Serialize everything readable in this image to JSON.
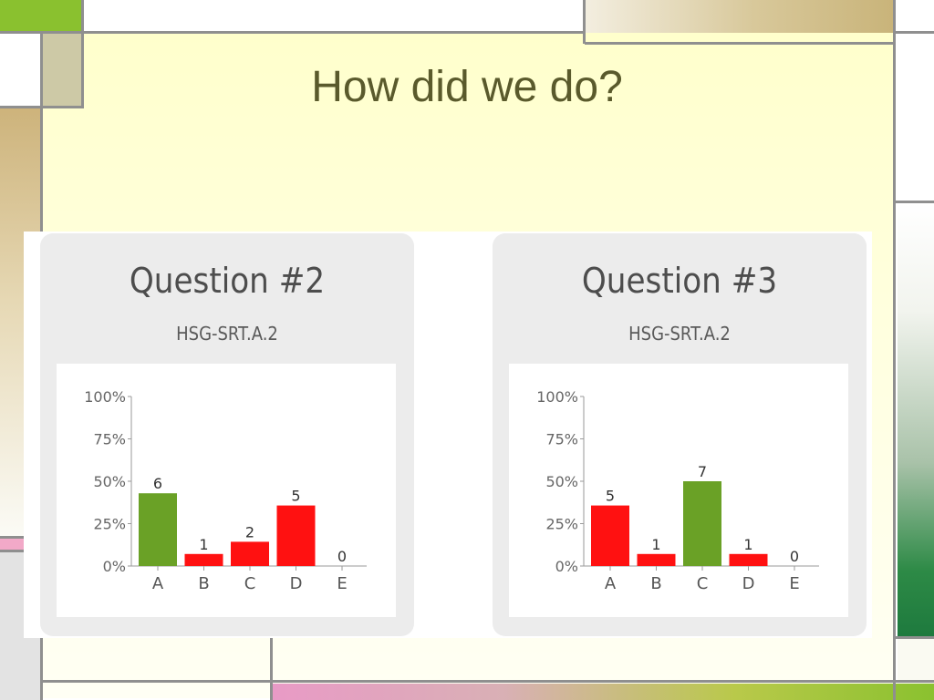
{
  "slide": {
    "title": "How did we do?",
    "colors": {
      "title": "#5a5a2c",
      "correct_bar": "#6aa126",
      "incorrect_bar": "#ff1111"
    }
  },
  "cards": [
    {
      "title": "Question #2",
      "subtitle": "HSG-SRT.A.2"
    },
    {
      "title": "Question #3",
      "subtitle": "HSG-SRT.A.2"
    }
  ],
  "chart_data": [
    {
      "type": "bar",
      "title": "Question #2",
      "subtitle": "HSG-SRT.A.2",
      "categories": [
        "A",
        "B",
        "C",
        "D",
        "E"
      ],
      "values": [
        6,
        1,
        2,
        5,
        0
      ],
      "percent_values": [
        42.9,
        7.1,
        14.3,
        35.7,
        0
      ],
      "bar_colors": [
        "#6aa126",
        "#ff1111",
        "#ff1111",
        "#ff1111",
        "#ff1111"
      ],
      "correct_answer": "A",
      "y_ticks": [
        "100%",
        "75%",
        "50%",
        "25%",
        "0%"
      ],
      "ylim": [
        0,
        100
      ],
      "xlabel": "",
      "ylabel": "",
      "grid": false
    },
    {
      "type": "bar",
      "title": "Question #3",
      "subtitle": "HSG-SRT.A.2",
      "categories": [
        "A",
        "B",
        "C",
        "D",
        "E"
      ],
      "values": [
        5,
        1,
        7,
        1,
        0
      ],
      "percent_values": [
        35.7,
        7.1,
        50,
        7.1,
        0
      ],
      "bar_colors": [
        "#ff1111",
        "#ff1111",
        "#6aa126",
        "#ff1111",
        "#ff1111"
      ],
      "correct_answer": "C",
      "y_ticks": [
        "100%",
        "75%",
        "50%",
        "25%",
        "0%"
      ],
      "ylim": [
        0,
        100
      ],
      "xlabel": "",
      "ylabel": "",
      "grid": false
    }
  ]
}
